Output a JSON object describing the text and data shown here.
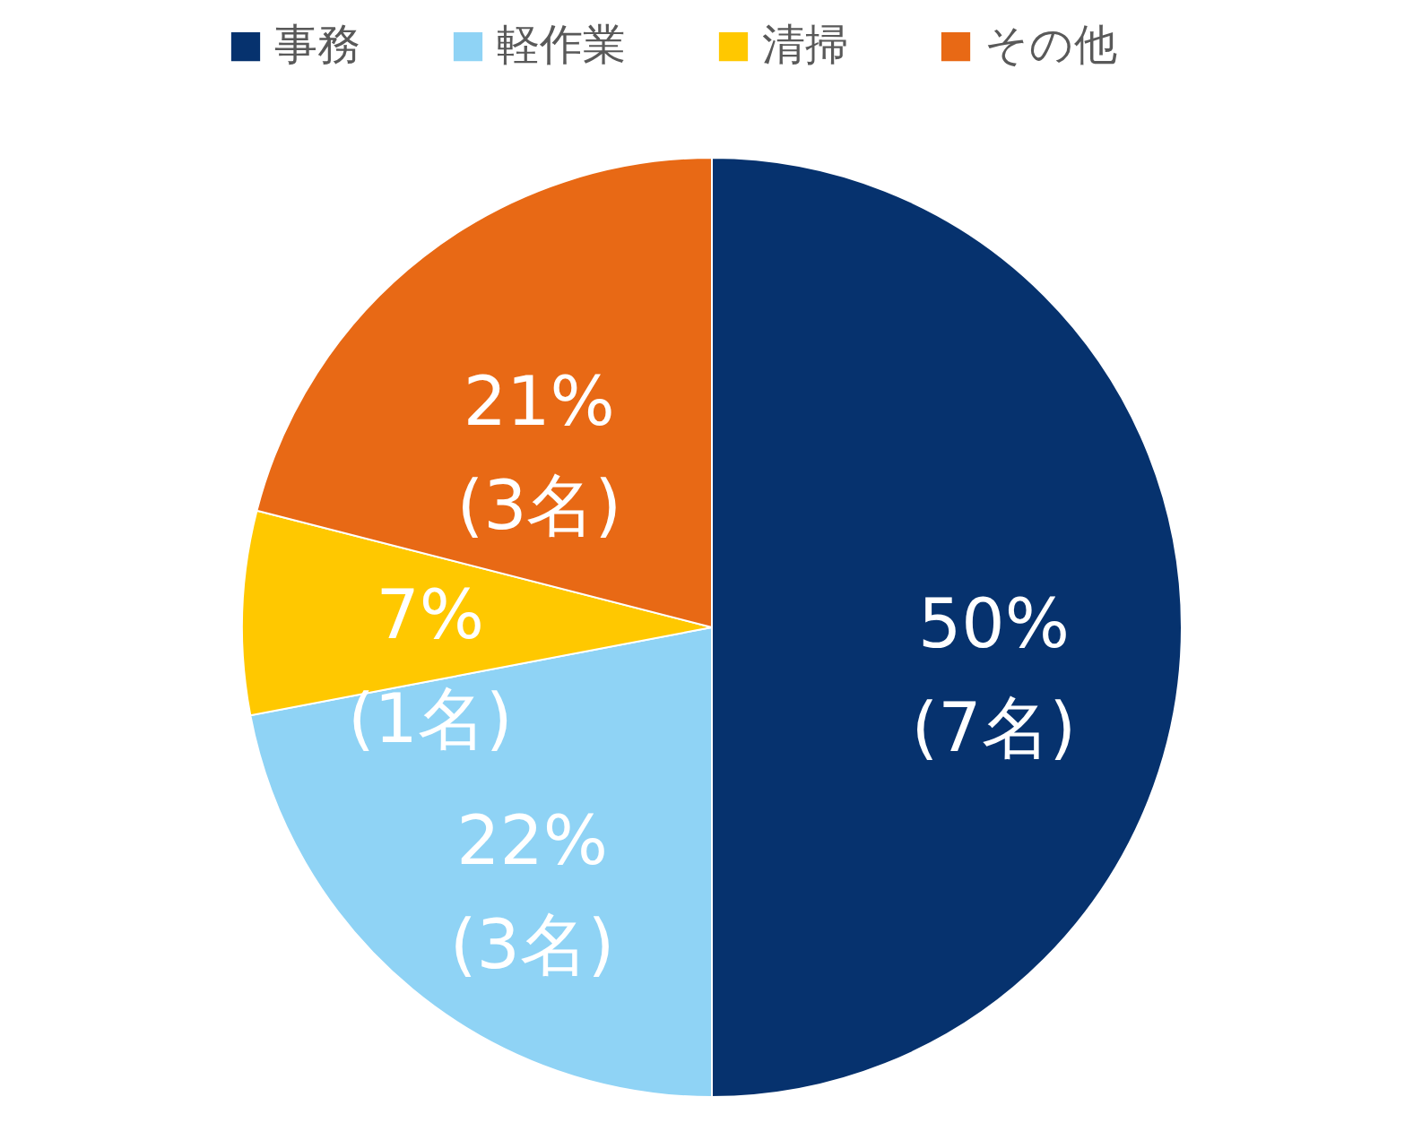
{
  "chart_data": {
    "type": "pie",
    "categories": [
      "事務",
      "軽作業",
      "清掃",
      "その他"
    ],
    "values": [
      50,
      22,
      7,
      21
    ],
    "colors": [
      "#06326e",
      "#8fd3f5",
      "#ffc800",
      "#e86915"
    ],
    "value_labels": [
      "50%\n(7名)",
      "22%\n(3名)",
      "7%\n(1名)",
      "21%\n(3名)"
    ],
    "legend": "top"
  }
}
